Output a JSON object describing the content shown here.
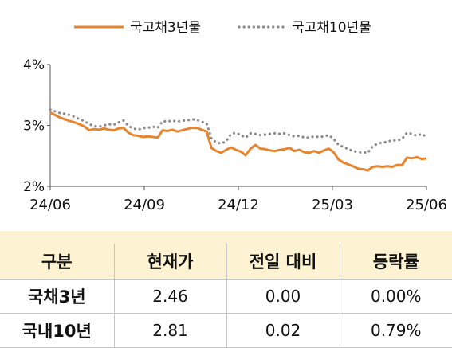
{
  "chart_data": {
    "type": "line",
    "title": "",
    "xlabel": "",
    "ylabel": "",
    "ylim": [
      2,
      4
    ],
    "yticks": [
      2,
      3,
      4
    ],
    "y_tick_labels": [
      "2%",
      "3%",
      "4%"
    ],
    "x_tick_labels": [
      "24/06",
      "24/09",
      "24/12",
      "25/03",
      "25/06"
    ],
    "legend_position": "top",
    "grid": false,
    "series": [
      {
        "name": "국고채3년물",
        "color": "#e8842e",
        "style": "solid",
        "values": [
          3.21,
          3.17,
          3.13,
          3.1,
          3.07,
          3.05,
          3.02,
          2.98,
          2.92,
          2.94,
          2.93,
          2.95,
          2.93,
          2.92,
          2.95,
          2.96,
          2.88,
          2.84,
          2.83,
          2.81,
          2.82,
          2.81,
          2.8,
          2.92,
          2.91,
          2.93,
          2.9,
          2.92,
          2.94,
          2.96,
          2.96,
          2.93,
          2.9,
          2.63,
          2.58,
          2.55,
          2.6,
          2.64,
          2.6,
          2.57,
          2.51,
          2.62,
          2.68,
          2.62,
          2.61,
          2.59,
          2.58,
          2.6,
          2.61,
          2.63,
          2.58,
          2.6,
          2.56,
          2.55,
          2.58,
          2.55,
          2.59,
          2.62,
          2.56,
          2.44,
          2.39,
          2.36,
          2.33,
          2.29,
          2.28,
          2.26,
          2.32,
          2.33,
          2.32,
          2.33,
          2.32,
          2.35,
          2.35,
          2.47,
          2.46,
          2.48,
          2.45,
          2.46
        ]
      },
      {
        "name": "국고채10년물",
        "color": "#8c8c8c",
        "style": "dotted",
        "values": [
          3.26,
          3.23,
          3.2,
          3.19,
          3.17,
          3.14,
          3.1,
          3.07,
          3.02,
          2.99,
          2.98,
          3.0,
          3.02,
          3.01,
          3.05,
          3.08,
          2.99,
          2.95,
          2.93,
          2.96,
          2.96,
          2.98,
          2.96,
          3.07,
          3.06,
          3.08,
          3.06,
          3.08,
          3.08,
          3.1,
          3.09,
          3.06,
          3.03,
          2.78,
          2.72,
          2.7,
          2.74,
          2.86,
          2.88,
          2.84,
          2.8,
          2.87,
          2.86,
          2.84,
          2.85,
          2.86,
          2.87,
          2.86,
          2.87,
          2.84,
          2.82,
          2.83,
          2.8,
          2.8,
          2.82,
          2.81,
          2.82,
          2.84,
          2.78,
          2.68,
          2.65,
          2.61,
          2.58,
          2.56,
          2.56,
          2.55,
          2.66,
          2.7,
          2.72,
          2.73,
          2.76,
          2.75,
          2.78,
          2.88,
          2.86,
          2.83,
          2.86,
          2.81
        ]
      }
    ]
  },
  "table": {
    "headers": [
      "구분",
      "현재가",
      "전일 대비",
      "등락률"
    ],
    "rows": [
      {
        "label": "국채3년",
        "price": "2.46",
        "change": "0.00",
        "rate": "0.00%"
      },
      {
        "label": "국내10년",
        "price": "2.81",
        "change": "0.02",
        "rate": "0.79%"
      }
    ]
  },
  "colors": {
    "accent_bar": "#fdf3d2",
    "header_bg": "#fdf3d2",
    "axis": "#555555"
  }
}
